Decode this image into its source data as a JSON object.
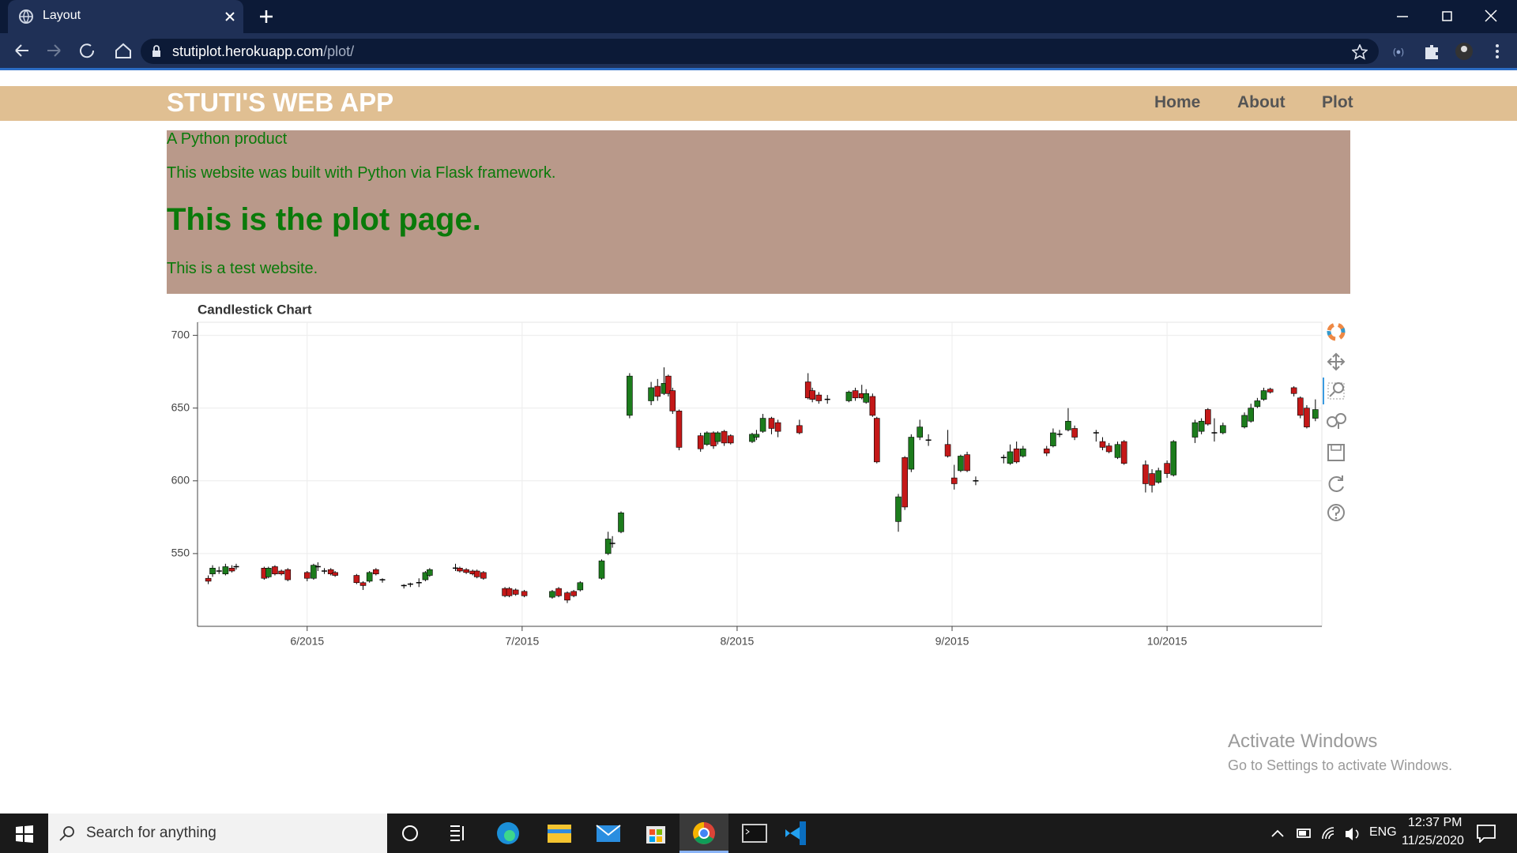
{
  "browser": {
    "tab_title": "Layout",
    "url_host": "stutiplot.herokuapp.com",
    "url_path": "/plot/"
  },
  "navbar": {
    "brand": "STUTI'S WEB APP",
    "links": [
      "Home",
      "About",
      "Plot"
    ]
  },
  "content": {
    "tagline": "A Python product",
    "description": "This website was built with Python via Flask framework.",
    "heading": "This is the plot page.",
    "note": "This is a test website."
  },
  "chart_data": {
    "type": "candlestick",
    "title": "Candlestick Chart",
    "x": [
      5.54,
      5.56,
      5.59,
      5.62,
      5.65,
      5.67,
      5.8,
      5.82,
      5.85,
      5.88,
      5.91,
      6.0,
      6.03,
      6.05,
      6.08,
      6.11,
      6.13,
      6.23,
      6.26,
      6.29,
      6.32,
      6.35,
      6.45,
      6.48,
      6.52,
      6.55,
      6.57,
      6.69,
      6.71,
      6.74,
      6.77,
      6.79,
      6.82,
      6.92,
      6.94,
      6.97,
      7.01,
      7.14,
      7.17,
      7.21,
      7.24,
      7.27,
      7.37,
      7.4,
      7.42,
      7.46,
      7.5,
      7.6,
      7.63,
      7.66,
      7.68,
      7.7,
      7.73,
      7.83,
      7.86,
      7.89,
      7.91,
      7.94,
      7.97,
      8.07,
      8.09,
      8.12,
      8.16,
      8.19,
      8.29,
      8.33,
      8.35,
      8.38,
      8.42,
      8.52,
      8.55,
      8.58,
      8.6,
      8.63,
      8.65,
      8.75,
      8.78,
      8.81,
      8.85,
      8.89,
      8.98,
      9.01,
      9.04,
      9.07,
      9.11,
      9.24,
      9.27,
      9.3,
      9.33,
      9.44,
      9.47,
      9.5,
      9.54,
      9.57,
      9.67,
      9.7,
      9.73,
      9.77,
      9.8,
      9.9,
      9.93,
      9.96,
      10.0,
      10.03,
      10.13,
      10.16,
      10.19,
      10.22,
      10.26,
      10.36,
      10.39,
      10.42,
      10.45,
      10.48,
      10.59,
      10.62,
      10.65,
      10.69
    ],
    "open": [
      533,
      536,
      538,
      536,
      540,
      541,
      540,
      534,
      541,
      538,
      539,
      537,
      533,
      541,
      538,
      539,
      537,
      535,
      530,
      531,
      539,
      532,
      528,
      529,
      530,
      532,
      535,
      540,
      540,
      539,
      538,
      538,
      537,
      526,
      526,
      525,
      524,
      520,
      526,
      523,
      524,
      525,
      533,
      550,
      557,
      565,
      645,
      655,
      665,
      660,
      672,
      662,
      648,
      631,
      625,
      633,
      627,
      634,
      631,
      627,
      630,
      634,
      643,
      640,
      638,
      668,
      662,
      659,
      656,
      655,
      662,
      660,
      654,
      658,
      643,
      572,
      616,
      608,
      630,
      628,
      625,
      602,
      607,
      618,
      600,
      616,
      612,
      622,
      617,
      622,
      624,
      632,
      635,
      636,
      633,
      627,
      624,
      616,
      627,
      611,
      605,
      599,
      612,
      604,
      630,
      634,
      649,
      633,
      633,
      637,
      641,
      651,
      656,
      663,
      664,
      657,
      650,
      643
    ],
    "high": [
      535,
      542,
      541,
      543,
      542,
      543,
      541,
      541,
      542,
      539,
      540,
      538,
      543,
      544,
      540,
      540,
      538,
      536,
      531,
      538,
      540,
      533,
      529,
      530,
      533,
      538,
      540,
      543,
      541,
      540,
      539,
      539,
      538,
      527,
      527,
      526,
      525,
      525,
      527,
      524,
      525,
      531,
      546,
      565,
      562,
      579,
      674,
      668,
      670,
      678,
      673,
      664,
      649,
      633,
      634,
      634,
      634,
      635,
      632,
      633,
      635,
      646,
      644,
      642,
      642,
      674,
      664,
      661,
      659,
      662,
      664,
      666,
      663,
      660,
      644,
      591,
      617,
      632,
      642,
      632,
      635,
      611,
      618,
      620,
      603,
      618,
      625,
      627,
      624,
      624,
      636,
      635,
      650,
      638,
      635,
      630,
      626,
      627,
      628,
      614,
      608,
      609,
      614,
      628,
      642,
      643,
      650,
      643,
      640,
      647,
      653,
      657,
      664,
      664,
      665,
      658,
      652,
      656
    ],
    "low": [
      529,
      534,
      536,
      535,
      537,
      539,
      532,
      533,
      535,
      535,
      531,
      531,
      532,
      538,
      536,
      535,
      534,
      529,
      525,
      530,
      535,
      530,
      526,
      527,
      527,
      531,
      534,
      538,
      537,
      536,
      535,
      533,
      532,
      520,
      520,
      521,
      520,
      519,
      520,
      516,
      520,
      524,
      532,
      549,
      554,
      564,
      643,
      652,
      655,
      659,
      658,
      646,
      621,
      620,
      624,
      622,
      625,
      624,
      625,
      626,
      628,
      633,
      632,
      630,
      632,
      656,
      654,
      653,
      653,
      654,
      655,
      656,
      653,
      644,
      612,
      565,
      580,
      606,
      628,
      624,
      616,
      594,
      606,
      606,
      597,
      612,
      611,
      612,
      616,
      617,
      623,
      630,
      634,
      628,
      627,
      621,
      619,
      615,
      611,
      592,
      592,
      598,
      602,
      603,
      626,
      632,
      638,
      627,
      632,
      636,
      640,
      650,
      655,
      660,
      658,
      643,
      636,
      641
    ],
    "close": [
      531,
      540,
      538,
      541,
      538,
      541,
      533,
      540,
      536,
      536,
      532,
      533,
      542,
      541,
      538,
      536,
      535,
      530,
      528,
      537,
      536,
      532,
      528,
      529,
      530,
      537,
      539,
      540,
      538,
      537,
      536,
      534,
      533,
      521,
      521,
      522,
      521,
      524,
      521,
      518,
      521,
      530,
      545,
      560,
      557,
      578,
      672,
      664,
      658,
      667,
      660,
      648,
      623,
      622,
      633,
      624,
      633,
      626,
      626,
      632,
      632,
      643,
      636,
      634,
      633,
      657,
      656,
      655,
      656,
      661,
      657,
      657,
      660,
      645,
      613,
      589,
      582,
      630,
      637,
      628,
      617,
      598,
      617,
      607,
      600,
      616,
      620,
      613,
      622,
      619,
      633,
      632,
      641,
      630,
      633,
      623,
      620,
      625,
      612,
      598,
      597,
      607,
      605,
      627,
      640,
      641,
      639,
      633,
      638,
      645,
      650,
      655,
      662,
      661,
      660,
      645,
      637,
      649
    ],
    "increasing_color": "#1c7c1c",
    "decreasing_color": "#c41818",
    "wick_color": "#000000",
    "xlim": [
      5.49,
      10.72
    ],
    "ylim": [
      500,
      709
    ],
    "xticks": [
      {
        "value": 6,
        "label": "6/2015"
      },
      {
        "value": 7,
        "label": "7/2015"
      },
      {
        "value": 8,
        "label": "8/2015"
      },
      {
        "value": 9,
        "label": "9/2015"
      },
      {
        "value": 10,
        "label": "10/2015"
      }
    ],
    "yticks": [
      550,
      600,
      650,
      700
    ],
    "grid": true
  },
  "watermark": {
    "title": "Activate Windows",
    "subtitle": "Go to Settings to activate Windows."
  },
  "taskbar": {
    "search": "Search for anything",
    "language": "ENG",
    "time": "12:37 PM",
    "date": "11/25/2020"
  }
}
